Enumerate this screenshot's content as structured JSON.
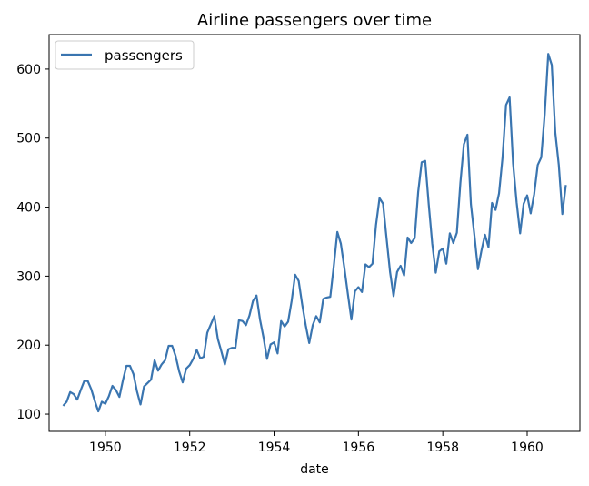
{
  "chart_data": {
    "type": "line",
    "title": "Airline passengers over time",
    "xlabel": "date",
    "ylabel": "",
    "xlim": [
      "1948-09-01",
      "1961-04-01"
    ],
    "ylim": [
      75,
      650
    ],
    "x_ticks": [
      "1950",
      "1952",
      "1954",
      "1956",
      "1958",
      "1960"
    ],
    "y_ticks": [
      "100",
      "200",
      "300",
      "400",
      "500",
      "600"
    ],
    "legend": "top-left",
    "grid": false,
    "series": [
      {
        "name": "passengers",
        "color": "#3a75b0",
        "x": [
          "1949-01",
          "1949-02",
          "1949-03",
          "1949-04",
          "1949-05",
          "1949-06",
          "1949-07",
          "1949-08",
          "1949-09",
          "1949-10",
          "1949-11",
          "1949-12",
          "1950-01",
          "1950-02",
          "1950-03",
          "1950-04",
          "1950-05",
          "1950-06",
          "1950-07",
          "1950-08",
          "1950-09",
          "1950-10",
          "1950-11",
          "1950-12",
          "1951-01",
          "1951-02",
          "1951-03",
          "1951-04",
          "1951-05",
          "1951-06",
          "1951-07",
          "1951-08",
          "1951-09",
          "1951-10",
          "1951-11",
          "1951-12",
          "1952-01",
          "1952-02",
          "1952-03",
          "1952-04",
          "1952-05",
          "1952-06",
          "1952-07",
          "1952-08",
          "1952-09",
          "1952-10",
          "1952-11",
          "1952-12",
          "1953-01",
          "1953-02",
          "1953-03",
          "1953-04",
          "1953-05",
          "1953-06",
          "1953-07",
          "1953-08",
          "1953-09",
          "1953-10",
          "1953-11",
          "1953-12",
          "1954-01",
          "1954-02",
          "1954-03",
          "1954-04",
          "1954-05",
          "1954-06",
          "1954-07",
          "1954-08",
          "1954-09",
          "1954-10",
          "1954-11",
          "1954-12",
          "1955-01",
          "1955-02",
          "1955-03",
          "1955-04",
          "1955-05",
          "1955-06",
          "1955-07",
          "1955-08",
          "1955-09",
          "1955-10",
          "1955-11",
          "1955-12",
          "1956-01",
          "1956-02",
          "1956-03",
          "1956-04",
          "1956-05",
          "1956-06",
          "1956-07",
          "1956-08",
          "1956-09",
          "1956-10",
          "1956-11",
          "1956-12",
          "1957-01",
          "1957-02",
          "1957-03",
          "1957-04",
          "1957-05",
          "1957-06",
          "1957-07",
          "1957-08",
          "1957-09",
          "1957-10",
          "1957-11",
          "1957-12",
          "1958-01",
          "1958-02",
          "1958-03",
          "1958-04",
          "1958-05",
          "1958-06",
          "1958-07",
          "1958-08",
          "1958-09",
          "1958-10",
          "1958-11",
          "1958-12",
          "1959-01",
          "1959-02",
          "1959-03",
          "1959-04",
          "1959-05",
          "1959-06",
          "1959-07",
          "1959-08",
          "1959-09",
          "1959-10",
          "1959-11",
          "1959-12",
          "1960-01",
          "1960-02",
          "1960-03",
          "1960-04",
          "1960-05",
          "1960-06",
          "1960-07",
          "1960-08",
          "1960-09",
          "1960-10",
          "1960-11",
          "1960-12"
        ],
        "values": [
          112,
          118,
          132,
          129,
          121,
          135,
          148,
          148,
          136,
          119,
          104,
          118,
          115,
          126,
          141,
          135,
          125,
          149,
          170,
          170,
          158,
          133,
          114,
          140,
          145,
          150,
          178,
          163,
          172,
          178,
          199,
          199,
          184,
          162,
          146,
          166,
          171,
          180,
          193,
          181,
          183,
          218,
          230,
          242,
          209,
          191,
          172,
          194,
          196,
          196,
          236,
          235,
          229,
          243,
          264,
          272,
          237,
          211,
          180,
          201,
          204,
          188,
          235,
          227,
          234,
          264,
          302,
          293,
          259,
          229,
          203,
          229,
          242,
          233,
          267,
          269,
          270,
          315,
          364,
          347,
          312,
          274,
          237,
          278,
          284,
          277,
          317,
          313,
          318,
          374,
          413,
          405,
          355,
          306,
          271,
          306,
          315,
          301,
          356,
          348,
          355,
          422,
          465,
          467,
          404,
          347,
          305,
          336,
          340,
          318,
          362,
          348,
          363,
          435,
          491,
          505,
          404,
          359,
          310,
          337,
          360,
          342,
          406,
          396,
          420,
          472,
          548,
          559,
          463,
          407,
          362,
          405,
          417,
          391,
          419,
          461,
          472,
          535,
          622,
          606,
          508,
          461,
          390,
          432
        ]
      }
    ]
  }
}
